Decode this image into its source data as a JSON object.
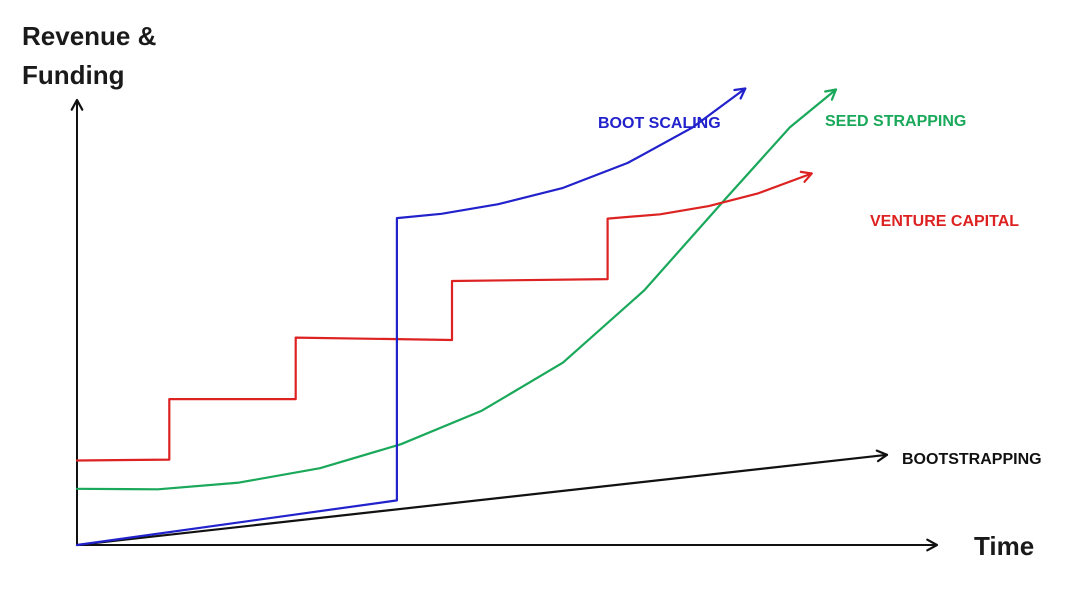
{
  "chart_data": {
    "type": "line",
    "title": "",
    "ylabel_lines": [
      "Revenue &",
      "Funding"
    ],
    "xlabel": "Time",
    "xlim": [
      0,
      100
    ],
    "ylim": [
      0,
      100
    ],
    "grid": false,
    "legend": "none",
    "colors": {
      "axis": "#111111",
      "bootstrapping": "#111111",
      "boot_scaling": "#2222cc",
      "seed_strapping": "#1aa85a",
      "venture_capital": "#dd2222"
    },
    "series": [
      {
        "name": "BOOTSTRAPPING",
        "color": "#111111",
        "arrow_end": true,
        "points": [
          [
            0,
            0
          ],
          [
            100,
            18.8
          ]
        ]
      },
      {
        "name": "BOOT SCALING",
        "color": "#2222cc",
        "arrow_end": true,
        "points": [
          [
            0,
            0
          ],
          [
            39.5,
            9.3
          ],
          [
            39.5,
            68.1
          ],
          [
            45,
            69.0
          ],
          [
            52,
            71.0
          ],
          [
            60,
            74.4
          ],
          [
            68,
            79.6
          ],
          [
            76,
            87.0
          ],
          [
            82.5,
            95.1
          ]
        ]
      },
      {
        "name": "SEED STRAPPING",
        "color": "#1aa85a",
        "arrow_end": true,
        "points": [
          [
            0,
            11.7
          ],
          [
            10,
            11.6
          ],
          [
            20,
            13.0
          ],
          [
            30,
            16.0
          ],
          [
            40,
            21.0
          ],
          [
            50,
            28.0
          ],
          [
            60,
            38.0
          ],
          [
            70,
            53.0
          ],
          [
            80,
            72.0
          ],
          [
            88,
            87.0
          ],
          [
            93.7,
            94.9
          ]
        ]
      },
      {
        "name": "VENTURE CAPITAL",
        "color": "#dd2222",
        "arrow_end": true,
        "points": [
          [
            0,
            17.6
          ],
          [
            11.4,
            17.8
          ],
          [
            11.4,
            30.4
          ],
          [
            27.0,
            30.4
          ],
          [
            27.0,
            43.2
          ],
          [
            46.3,
            42.7
          ],
          [
            46.3,
            55.0
          ],
          [
            65.5,
            55.4
          ],
          [
            65.5,
            68.0
          ],
          [
            72,
            68.9
          ],
          [
            78,
            70.6
          ],
          [
            84,
            73.2
          ],
          [
            90.7,
            77.4
          ]
        ]
      }
    ]
  }
}
